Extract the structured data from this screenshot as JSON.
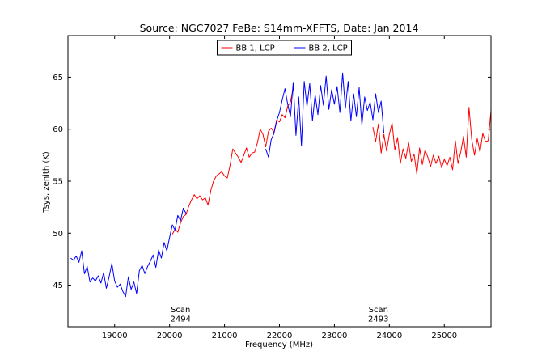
{
  "chart_data": {
    "type": "line",
    "title": "Source: NGC7027 FeBe: S14mm-XFFTS, Date: Jan 2014",
    "xlabel": "Frequency (MHz)",
    "ylabel": "Tsys, zenith (K)",
    "xlim": [
      18150,
      25850
    ],
    "ylim": [
      41,
      69
    ],
    "xticks": [
      19000,
      20000,
      21000,
      22000,
      23000,
      24000,
      25000
    ],
    "yticks": [
      45,
      50,
      55,
      60,
      65
    ],
    "legend_position": "top-center",
    "series": [
      {
        "name": "BB 1, LCP",
        "color": "#ff0000",
        "points": [
          [
            20050,
            49.9
          ],
          [
            20100,
            50.4
          ],
          [
            20150,
            50.1
          ],
          [
            20200,
            51.0
          ],
          [
            20250,
            51.6
          ],
          [
            20300,
            51.8
          ],
          [
            20350,
            52.6
          ],
          [
            20400,
            53.2
          ],
          [
            20450,
            53.7
          ],
          [
            20500,
            53.3
          ],
          [
            20550,
            53.6
          ],
          [
            20600,
            53.2
          ],
          [
            20650,
            53.4
          ],
          [
            20700,
            52.7
          ],
          [
            20750,
            54.1
          ],
          [
            20800,
            55.0
          ],
          [
            20850,
            55.5
          ],
          [
            20900,
            55.7
          ],
          [
            20950,
            55.9
          ],
          [
            21000,
            55.5
          ],
          [
            21050,
            55.3
          ],
          [
            21100,
            56.5
          ],
          [
            21150,
            58.1
          ],
          [
            21200,
            57.7
          ],
          [
            21250,
            57.3
          ],
          [
            21300,
            56.8
          ],
          [
            21350,
            57.5
          ],
          [
            21400,
            58.2
          ],
          [
            21450,
            57.3
          ],
          [
            21500,
            57.7
          ],
          [
            21550,
            57.8
          ],
          [
            21600,
            58.7
          ],
          [
            21650,
            60.0
          ],
          [
            21700,
            59.5
          ],
          [
            21750,
            58.3
          ],
          [
            21800,
            59.8
          ],
          [
            21850,
            60.1
          ],
          [
            21900,
            59.7
          ],
          [
            21950,
            60.9
          ],
          [
            22000,
            60.7
          ],
          [
            22050,
            61.4
          ],
          [
            22100,
            61.1
          ],
          [
            22150,
            62.2
          ],
          [
            22200,
            62.6
          ],
          [
            22250,
            64.0
          ],
          [
            23700,
            60.2
          ],
          [
            23750,
            58.8
          ],
          [
            23800,
            60.5
          ],
          [
            23850,
            57.7
          ],
          [
            23900,
            59.5
          ],
          [
            23950,
            57.9
          ],
          [
            24000,
            59.5
          ],
          [
            24050,
            60.6
          ],
          [
            24100,
            58.0
          ],
          [
            24150,
            59.2
          ],
          [
            24200,
            56.7
          ],
          [
            24250,
            58.1
          ],
          [
            24300,
            57.2
          ],
          [
            24350,
            58.7
          ],
          [
            24400,
            56.9
          ],
          [
            24450,
            57.6
          ],
          [
            24500,
            55.7
          ],
          [
            24550,
            58.2
          ],
          [
            24600,
            56.6
          ],
          [
            24650,
            58.0
          ],
          [
            24700,
            57.3
          ],
          [
            24750,
            56.4
          ],
          [
            24800,
            57.5
          ],
          [
            24850,
            56.7
          ],
          [
            24900,
            57.4
          ],
          [
            24950,
            56.3
          ],
          [
            25000,
            57.1
          ],
          [
            25050,
            56.5
          ],
          [
            25100,
            57.3
          ],
          [
            25150,
            56.1
          ],
          [
            25200,
            58.9
          ],
          [
            25250,
            56.7
          ],
          [
            25300,
            57.8
          ],
          [
            25350,
            59.3
          ],
          [
            25400,
            57.3
          ],
          [
            25450,
            62.1
          ],
          [
            25500,
            59.0
          ],
          [
            25550,
            57.5
          ],
          [
            25600,
            59.1
          ],
          [
            25650,
            57.8
          ],
          [
            25700,
            59.6
          ],
          [
            25750,
            58.8
          ],
          [
            25800,
            58.9
          ],
          [
            25850,
            61.8
          ]
        ]
      },
      {
        "name": "BB 2, LCP",
        "color": "#0000ff",
        "points": [
          [
            18200,
            47.6
          ],
          [
            18250,
            47.4
          ],
          [
            18300,
            47.8
          ],
          [
            18350,
            47.2
          ],
          [
            18400,
            48.3
          ],
          [
            18450,
            46.1
          ],
          [
            18500,
            46.8
          ],
          [
            18550,
            45.3
          ],
          [
            18600,
            45.7
          ],
          [
            18650,
            45.4
          ],
          [
            18700,
            45.9
          ],
          [
            18750,
            45.2
          ],
          [
            18800,
            46.2
          ],
          [
            18850,
            44.7
          ],
          [
            18900,
            45.8
          ],
          [
            18950,
            47.1
          ],
          [
            19000,
            45.4
          ],
          [
            19050,
            44.8
          ],
          [
            19100,
            45.1
          ],
          [
            19150,
            44.4
          ],
          [
            19200,
            43.9
          ],
          [
            19250,
            45.8
          ],
          [
            19300,
            44.6
          ],
          [
            19350,
            45.3
          ],
          [
            19400,
            44.2
          ],
          [
            19450,
            46.4
          ],
          [
            19500,
            46.9
          ],
          [
            19550,
            46.1
          ],
          [
            19600,
            46.8
          ],
          [
            19650,
            47.3
          ],
          [
            19700,
            47.9
          ],
          [
            19750,
            46.7
          ],
          [
            19800,
            48.4
          ],
          [
            19850,
            47.6
          ],
          [
            19900,
            49.1
          ],
          [
            19950,
            48.3
          ],
          [
            20000,
            49.6
          ],
          [
            20050,
            50.8
          ],
          [
            20100,
            50.3
          ],
          [
            20150,
            51.7
          ],
          [
            20200,
            51.2
          ],
          [
            20250,
            52.4
          ],
          [
            20300,
            51.9
          ],
          [
            21750,
            58.1
          ],
          [
            21800,
            57.3
          ],
          [
            21850,
            59.0
          ],
          [
            21900,
            59.6
          ],
          [
            21950,
            60.8
          ],
          [
            22000,
            61.6
          ],
          [
            22050,
            62.8
          ],
          [
            22100,
            63.9
          ],
          [
            22150,
            62.4
          ],
          [
            22200,
            61.2
          ],
          [
            22250,
            64.5
          ],
          [
            22300,
            59.4
          ],
          [
            22350,
            63.1
          ],
          [
            22400,
            58.4
          ],
          [
            22450,
            64.6
          ],
          [
            22500,
            62.2
          ],
          [
            22550,
            64.4
          ],
          [
            22600,
            60.8
          ],
          [
            22650,
            63.3
          ],
          [
            22700,
            61.4
          ],
          [
            22750,
            64.2
          ],
          [
            22800,
            62.3
          ],
          [
            22850,
            65.1
          ],
          [
            22900,
            61.9
          ],
          [
            22950,
            63.8
          ],
          [
            23000,
            62.4
          ],
          [
            23050,
            64.1
          ],
          [
            23100,
            61.6
          ],
          [
            23150,
            65.4
          ],
          [
            23200,
            62.0
          ],
          [
            23250,
            64.6
          ],
          [
            23300,
            60.8
          ],
          [
            23350,
            63.4
          ],
          [
            23400,
            61.2
          ],
          [
            23450,
            64.0
          ],
          [
            23500,
            60.4
          ],
          [
            23550,
            63.1
          ],
          [
            23600,
            61.8
          ],
          [
            23650,
            62.6
          ],
          [
            23700,
            60.9
          ],
          [
            23750,
            63.4
          ],
          [
            23800,
            61.6
          ],
          [
            23850,
            62.7
          ],
          [
            23900,
            59.6
          ]
        ]
      }
    ],
    "annotations": [
      {
        "x": 20200,
        "y": 41.5,
        "lines": [
          "Scan",
          "2494"
        ]
      },
      {
        "x": 23800,
        "y": 41.5,
        "lines": [
          "Scan",
          "2493"
        ]
      }
    ]
  }
}
